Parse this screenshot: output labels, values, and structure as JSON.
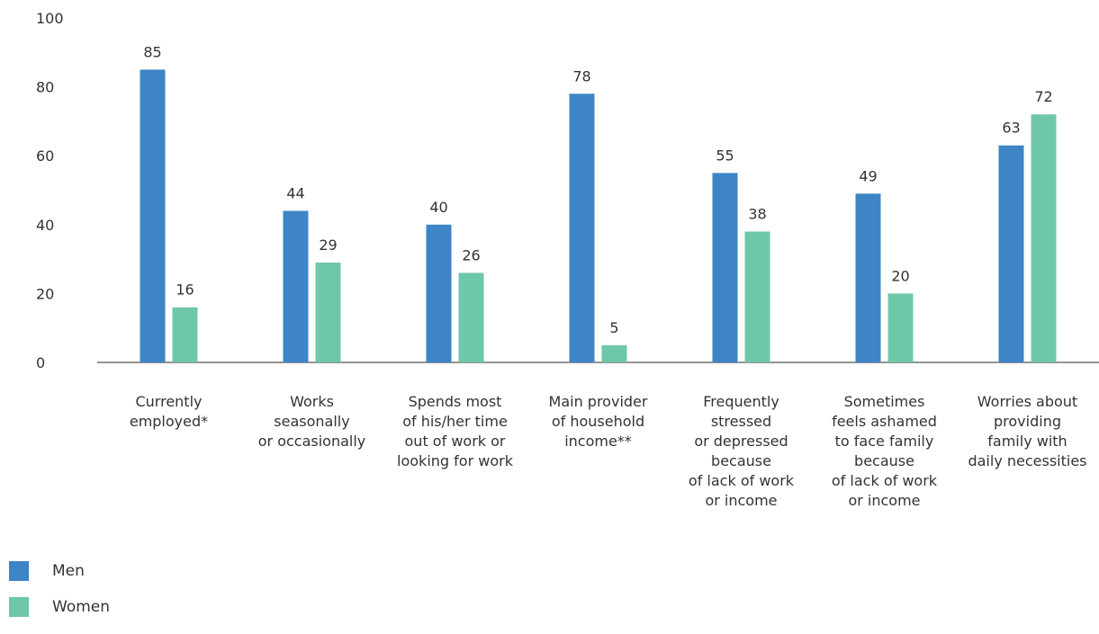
{
  "chart_data": {
    "type": "bar",
    "categories": [
      [
        "Currently",
        "employed*"
      ],
      [
        "Works",
        "seasonally",
        "or occasionally"
      ],
      [
        "Spends most",
        "of his/her time",
        "out of work or",
        "looking for work"
      ],
      [
        "Main provider",
        "of household",
        "income**"
      ],
      [
        "Frequently",
        "stressed",
        "or depressed",
        "because",
        "of lack of work",
        "or income"
      ],
      [
        "Sometimes",
        "feels ashamed",
        "to face family",
        "because",
        "of lack of work",
        "or income"
      ],
      [
        "Worries about",
        "providing",
        "family with",
        "daily necessities"
      ]
    ],
    "series": [
      {
        "name": "Men",
        "color": "#3d85c6",
        "values": [
          85,
          44,
          40,
          78,
          55,
          49,
          63
        ]
      },
      {
        "name": "Women",
        "color": "#6fc7a9",
        "values": [
          16,
          29,
          26,
          5,
          38,
          20,
          72
        ]
      }
    ],
    "ylim": [
      0,
      100
    ],
    "yticks": [
      0,
      20,
      40,
      60,
      80,
      100
    ],
    "ytick_labels": [
      "0",
      "20",
      "40",
      "60",
      "80",
      "100"
    ],
    "grid": false,
    "legend_position": "bottom-left"
  }
}
